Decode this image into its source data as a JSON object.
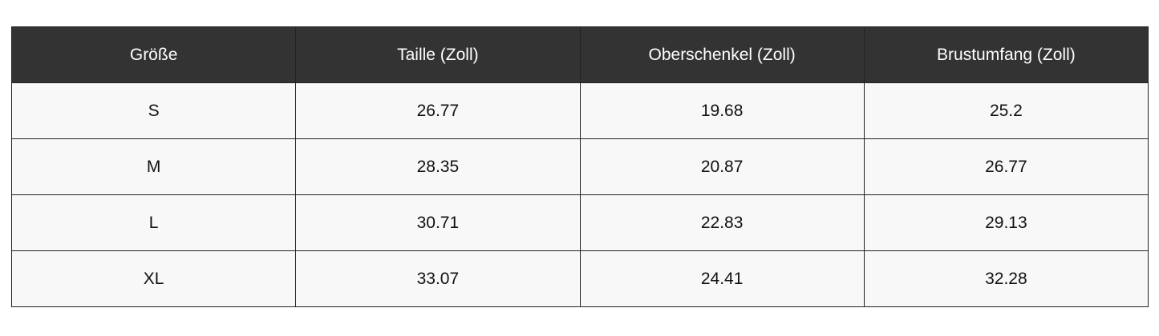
{
  "table": {
    "header": [
      "Größe",
      "Taille (Zoll)",
      "Oberschenkel (Zoll)",
      "Brustumfang (Zoll)"
    ],
    "rows": [
      [
        "S",
        "26.77",
        "19.68",
        "25.2"
      ],
      [
        "M",
        "28.35",
        "20.87",
        "26.77"
      ],
      [
        "L",
        "30.71",
        "22.83",
        "29.13"
      ],
      [
        "XL",
        "33.07",
        "24.41",
        "32.28"
      ]
    ]
  }
}
